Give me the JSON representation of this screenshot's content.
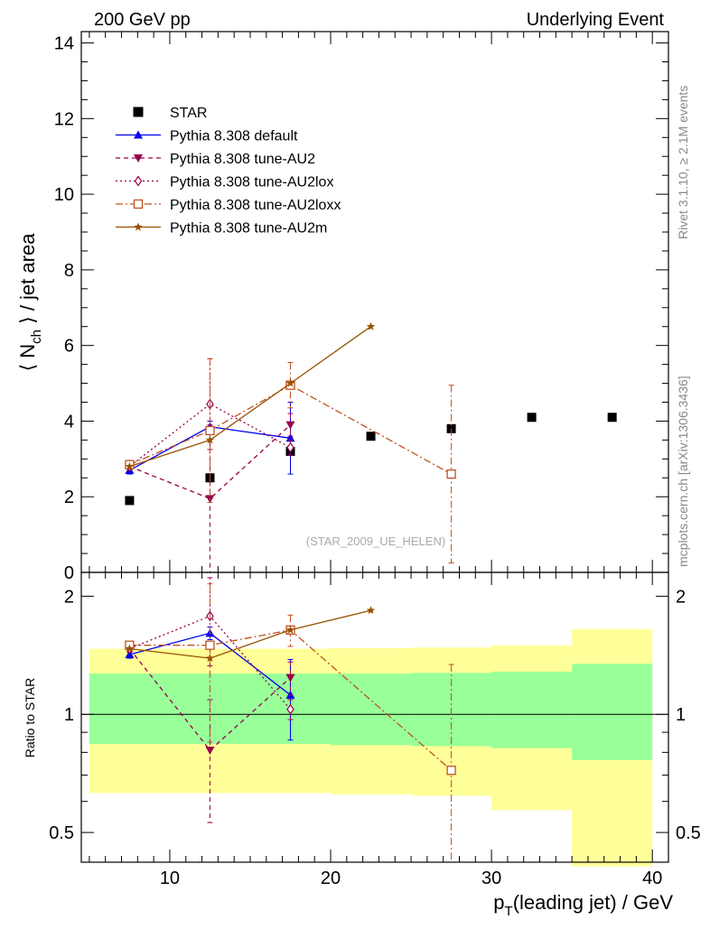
{
  "header": {
    "left": "200 GeV pp",
    "right": "Underlying Event",
    "side_top": "Rivet 3.1.10, ≥ 2.1M events",
    "side_bottom": "mcplots.cern.ch [arXiv:1306.3436]",
    "analysis": "(STAR_2009_UE_HELEN)"
  },
  "colors": {
    "star": "#000000",
    "default": "#0000ee",
    "au2": "#99004c",
    "au2lox": "#99004c",
    "au2loxx": "#c05020",
    "au2m": "#995000",
    "band_inner": "#99ff99",
    "band_outer": "#ffff99"
  },
  "chart_data": [
    {
      "type": "scatter",
      "ylabel": "⟨ N_ch ⟩ / jet area",
      "ylabel_main": "⟨ N",
      "ylabel_sub": "ch",
      "ylabel_tail": " ⟩ / jet area",
      "xlim": [
        4.5,
        41
      ],
      "ylim": [
        0,
        14.3
      ],
      "y_ticks": [
        0,
        2,
        4,
        6,
        8,
        10,
        12,
        14
      ],
      "y_tick_labels": [
        "0",
        "2",
        "4",
        "6",
        "8",
        "10",
        "12",
        "14"
      ],
      "series": [
        {
          "name": "STAR",
          "key": "star",
          "marker": "square-filled",
          "line": "none",
          "x": [
            7.5,
            12.5,
            17.5,
            22.5,
            27.5,
            32.5,
            37.5
          ],
          "y": [
            1.9,
            2.5,
            3.2,
            3.6,
            3.8,
            4.1,
            4.1
          ]
        },
        {
          "name": "Pythia 8.308 default",
          "key": "default",
          "marker": "triangle-up-filled",
          "line": "solid",
          "x": [
            7.5,
            12.5,
            17.5
          ],
          "y": [
            2.7,
            3.85,
            3.55
          ],
          "err": [
            0.1,
            0.15,
            0.95
          ]
        },
        {
          "name": "Pythia 8.308 tune-AU2",
          "key": "au2",
          "marker": "triangle-down-filled",
          "line": "dashed",
          "x": [
            7.5,
            12.5,
            17.5
          ],
          "y": [
            2.8,
            1.95,
            3.9
          ],
          "err": [
            0.1,
            1.95,
            0.3
          ]
        },
        {
          "name": "Pythia 8.308 tune-AU2lox",
          "key": "au2lox",
          "marker": "diamond-open",
          "line": "dotted",
          "x": [
            7.5,
            12.5,
            17.5
          ],
          "y": [
            2.8,
            4.45,
            3.3
          ],
          "err": [
            0.1,
            1.2,
            0.2
          ]
        },
        {
          "name": "Pythia 8.308 tune-AU2loxx",
          "key": "au2loxx",
          "marker": "square-open",
          "line": "dashdot",
          "x": [
            7.5,
            12.5,
            17.5,
            27.5
          ],
          "y": [
            2.85,
            3.75,
            4.95,
            2.6
          ],
          "err": [
            0.1,
            1.9,
            0.6,
            2.35
          ]
        },
        {
          "name": "Pythia 8.308 tune-AU2m",
          "key": "au2m",
          "marker": "star-filled",
          "line": "solid",
          "x": [
            7.5,
            12.5,
            17.5,
            22.5
          ],
          "y": [
            2.8,
            3.5,
            5.0,
            6.5
          ],
          "err": [
            0.0,
            0.0,
            0.0,
            0.0
          ]
        }
      ]
    },
    {
      "type": "scatter",
      "ylabel": "Ratio to STAR",
      "xlabel": "p_T(leading jet) / GeV",
      "xlabel_main": "p",
      "xlabel_sub": "T",
      "xlabel_tail": "(leading jet) / GeV",
      "xlim": [
        4.5,
        41
      ],
      "ylim": [
        0.42,
        2.3
      ],
      "log_y": true,
      "x_ticks": [
        10,
        20,
        30,
        40
      ],
      "x_tick_labels": [
        "10",
        "20",
        "30",
        "40"
      ],
      "y_ticks": [
        0.5,
        1,
        2
      ],
      "y_tick_labels": [
        "0.5",
        "1",
        "2"
      ],
      "reference": 1,
      "bins": [
        {
          "lo": 5,
          "hi": 10,
          "inner": [
            0.84,
            1.27
          ],
          "outer": [
            0.63,
            1.47
          ]
        },
        {
          "lo": 10,
          "hi": 15,
          "inner": [
            0.84,
            1.27
          ],
          "outer": [
            0.63,
            1.47
          ]
        },
        {
          "lo": 15,
          "hi": 20,
          "inner": [
            0.84,
            1.27
          ],
          "outer": [
            0.63,
            1.47
          ]
        },
        {
          "lo": 20,
          "hi": 25,
          "inner": [
            0.835,
            1.27
          ],
          "outer": [
            0.625,
            1.475
          ]
        },
        {
          "lo": 25,
          "hi": 30,
          "inner": [
            0.83,
            1.275
          ],
          "outer": [
            0.62,
            1.48
          ]
        },
        {
          "lo": 30,
          "hi": 35,
          "inner": [
            0.82,
            1.285
          ],
          "outer": [
            0.57,
            1.5
          ]
        },
        {
          "lo": 35,
          "hi": 40,
          "inner": [
            0.765,
            1.345
          ],
          "outer": [
            0.41,
            1.65
          ]
        }
      ],
      "series": [
        {
          "key": "default",
          "x": [
            7.5,
            12.5,
            17.5
          ],
          "y": [
            1.42,
            1.61,
            1.12
          ],
          "err": [
            0.03,
            0.06,
            0.26
          ]
        },
        {
          "key": "au2",
          "x": [
            7.5,
            12.5,
            17.5
          ],
          "y": [
            1.47,
            0.81,
            1.24
          ],
          "err": [
            0.03,
            0.28,
            0.12
          ]
        },
        {
          "key": "au2lox",
          "x": [
            7.5,
            12.5,
            17.5
          ],
          "y": [
            1.47,
            1.78,
            1.03
          ],
          "err": [
            0.03,
            0.45,
            0.06
          ]
        },
        {
          "key": "au2loxx",
          "x": [
            7.5,
            12.5,
            17.5,
            27.5
          ],
          "y": [
            1.5,
            1.5,
            1.64,
            0.72
          ],
          "err": [
            0.03,
            0.65,
            0.15,
            0.62
          ]
        },
        {
          "key": "au2m",
          "x": [
            7.5,
            12.5,
            17.5,
            22.5
          ],
          "y": [
            1.47,
            1.39,
            1.64,
            1.84
          ],
          "err": [
            0,
            0,
            0,
            0
          ]
        }
      ]
    }
  ]
}
